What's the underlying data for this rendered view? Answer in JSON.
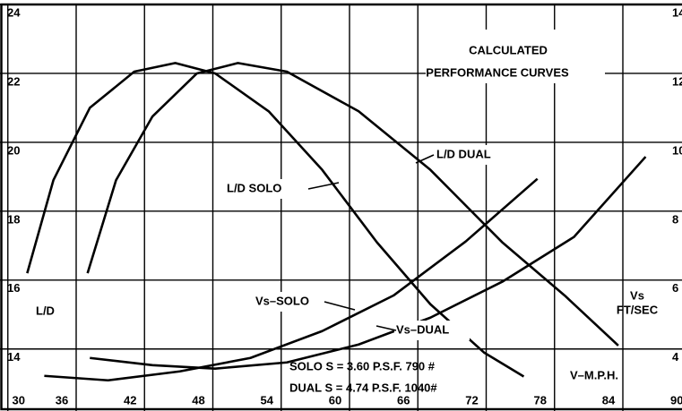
{
  "chart_data": {
    "type": "line",
    "title": "CALCULATED",
    "subtitle": "PERFORMANCE CURVES",
    "y_label": "L/D",
    "y2_label": "Vs",
    "y2_units": "FT/SEC",
    "x_label": "V–M.P.H.",
    "annotations": [
      "L/D DUAL",
      "L/D SOLO",
      "Vs–SOLO",
      "Vs–DUAL",
      "SOLO S = 3.60 P.S.F. 790 #",
      "DUAL S = 4.74 P.S.F. 1040#"
    ],
    "xlim": [
      30,
      90
    ],
    "xticks": [
      30,
      36,
      42,
      48,
      54,
      60,
      66,
      72,
      78,
      84,
      90
    ],
    "ylim": [
      12.2,
      24
    ],
    "yticks": [
      14,
      16,
      18,
      20,
      22,
      24
    ],
    "y2lim": [
      2.2,
      14
    ],
    "y2ticks": [
      4,
      6,
      8,
      10,
      12,
      14
    ],
    "grid": true,
    "series": [
      {
        "name": "L/D SOLO",
        "color": "#000000",
        "x": [
          31.7,
          34.0,
          37.2,
          41.1,
          44.7,
          48.2,
          52.9,
          57.6,
          62.4,
          67.1,
          71.8,
          75.3
        ],
        "values": [
          16.2,
          18.9,
          21.0,
          22.05,
          22.3,
          22.0,
          20.9,
          19.2,
          17.1,
          15.3,
          13.9,
          13.2
        ]
      },
      {
        "name": "L/D DUAL",
        "color": "#000000",
        "x": [
          37.0,
          39.5,
          42.7,
          46.6,
          50.2,
          54.5,
          60.8,
          67.1,
          73.4,
          78.9,
          83.6
        ],
        "values": [
          16.2,
          18.9,
          20.75,
          22.0,
          22.3,
          22.05,
          20.9,
          19.2,
          17.1,
          15.55,
          14.1
        ]
      },
      {
        "name": "Vs–SOLO",
        "color": "#000000",
        "axis": "y2",
        "x": [
          33.2,
          38.8,
          45.1,
          51.3,
          57.6,
          63.9,
          70.2,
          76.5
        ],
        "values": [
          3.22,
          3.09,
          3.35,
          3.74,
          4.52,
          5.56,
          7.12,
          8.94
        ]
      },
      {
        "name": "Vs–DUAL",
        "color": "#000000",
        "axis": "y2",
        "x": [
          37.2,
          42.7,
          48.2,
          54.5,
          60.8,
          67.1,
          73.4,
          79.7,
          86.0
        ],
        "values": [
          3.74,
          3.53,
          3.43,
          3.61,
          4.13,
          4.91,
          5.95,
          7.25,
          9.58
        ]
      }
    ]
  }
}
